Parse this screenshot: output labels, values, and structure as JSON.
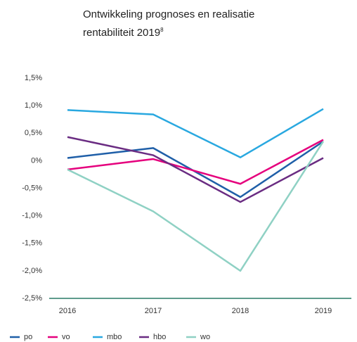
{
  "chart_data": {
    "type": "line",
    "title": "Ontwikkeling prognoses en realisatie rentabiliteit 2019",
    "title_footnote": "8",
    "categories": [
      "2016",
      "2017",
      "2018",
      "2019"
    ],
    "series": [
      {
        "name": "po",
        "color": "#1f5fa8",
        "values": [
          0.05,
          0.23,
          -0.66,
          0.35
        ]
      },
      {
        "name": "vo",
        "color": "#e5007d",
        "values": [
          -0.16,
          0.03,
          -0.42,
          0.38
        ]
      },
      {
        "name": "mbo",
        "color": "#29a8e0",
        "values": [
          0.92,
          0.84,
          0.06,
          0.94
        ]
      },
      {
        "name": "hbo",
        "color": "#6a2c82",
        "values": [
          0.43,
          0.1,
          -0.75,
          0.05
        ]
      },
      {
        "name": "wo",
        "color": "#8fd1c4",
        "values": [
          -0.16,
          -0.92,
          -2.0,
          0.35
        ]
      }
    ],
    "ylim": [
      -2.5,
      1.5
    ],
    "yticks": [
      {
        "value": 1.5,
        "label": "1,5%"
      },
      {
        "value": 1.0,
        "label": "1,0%"
      },
      {
        "value": 0.5,
        "label": "0,5%"
      },
      {
        "value": 0,
        "label": "0%"
      },
      {
        "value": -0.5,
        "label": "-0,5%"
      },
      {
        "value": -1.0,
        "label": "-1,0%"
      },
      {
        "value": -1.5,
        "label": "-1,5%"
      },
      {
        "value": -2.0,
        "label": "-2,0%"
      },
      {
        "value": -2.5,
        "label": "-2,5%"
      }
    ],
    "grid": false
  }
}
